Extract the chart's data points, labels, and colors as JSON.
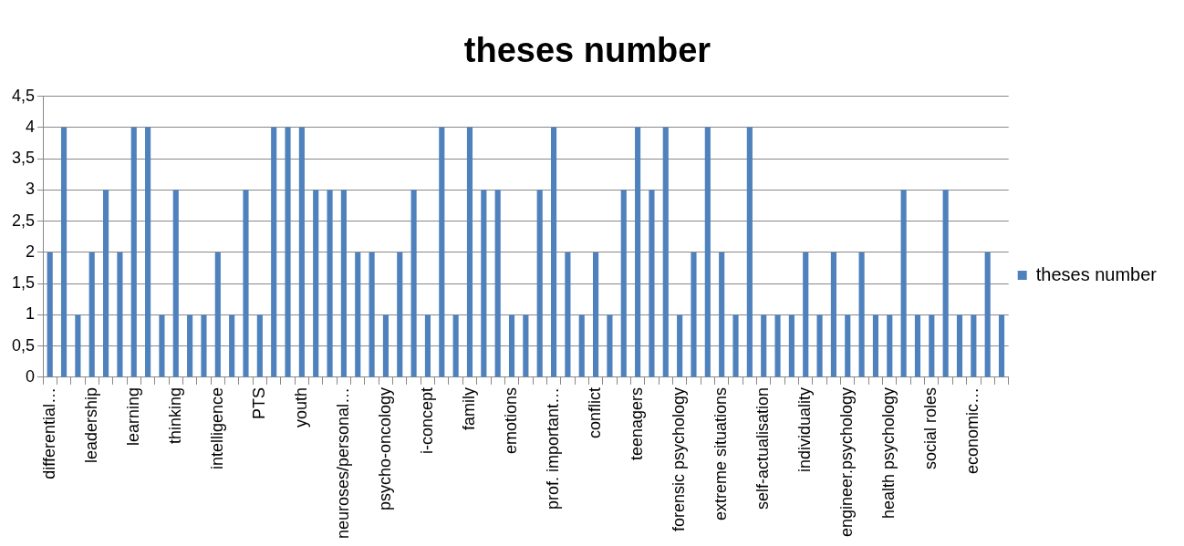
{
  "chart_data": {
    "type": "bar",
    "title": "theses number",
    "categories": [
      "differential…",
      null,
      null,
      "leadership",
      null,
      null,
      "learning",
      null,
      null,
      "thinking",
      null,
      null,
      "intelligence",
      null,
      null,
      "PTS",
      null,
      null,
      "youth",
      null,
      null,
      "neuroses/personal…",
      null,
      null,
      "psycho-oncology",
      null,
      null,
      "i-concept",
      null,
      null,
      "family",
      null,
      null,
      "emotions",
      null,
      null,
      "prof. important…",
      null,
      null,
      "conflict",
      null,
      null,
      "teenagers",
      null,
      null,
      "forensic psychology",
      null,
      null,
      "extreme situations",
      null,
      null,
      "self-actualisation",
      null,
      null,
      "individuality",
      null,
      null,
      "engineer.psychology",
      null,
      null,
      "health psychology",
      null,
      null,
      "social roles",
      null,
      null,
      "economic…",
      null,
      null
    ],
    "series": [
      {
        "name": "theses number",
        "color": "#4f81bd",
        "values": [
          2,
          4,
          1,
          2,
          3,
          2,
          4,
          4,
          1,
          3,
          1,
          1,
          2,
          1,
          3,
          1,
          4,
          4,
          4,
          3,
          3,
          3,
          2,
          2,
          1,
          2,
          3,
          1,
          4,
          1,
          4,
          3,
          3,
          1,
          1,
          3,
          4,
          2,
          1,
          2,
          1,
          3,
          4,
          3,
          4,
          1,
          2,
          4,
          2,
          1,
          4,
          1,
          1,
          1,
          2,
          1,
          2,
          1,
          2,
          1,
          1,
          3,
          1,
          1,
          3,
          1,
          1,
          2,
          1
        ]
      }
    ],
    "ylim": [
      0,
      4.5
    ],
    "yticks": [
      0,
      {
        "value": 0.5,
        "label": "0,5"
      },
      1,
      {
        "value": 1.5,
        "label": "1,5"
      },
      2,
      {
        "value": 2.5,
        "label": "2,5"
      },
      3,
      {
        "value": 3.5,
        "label": "3,5"
      },
      4,
      {
        "value": 4.5,
        "label": "4,5"
      }
    ],
    "grid": "y",
    "legend": "right"
  }
}
